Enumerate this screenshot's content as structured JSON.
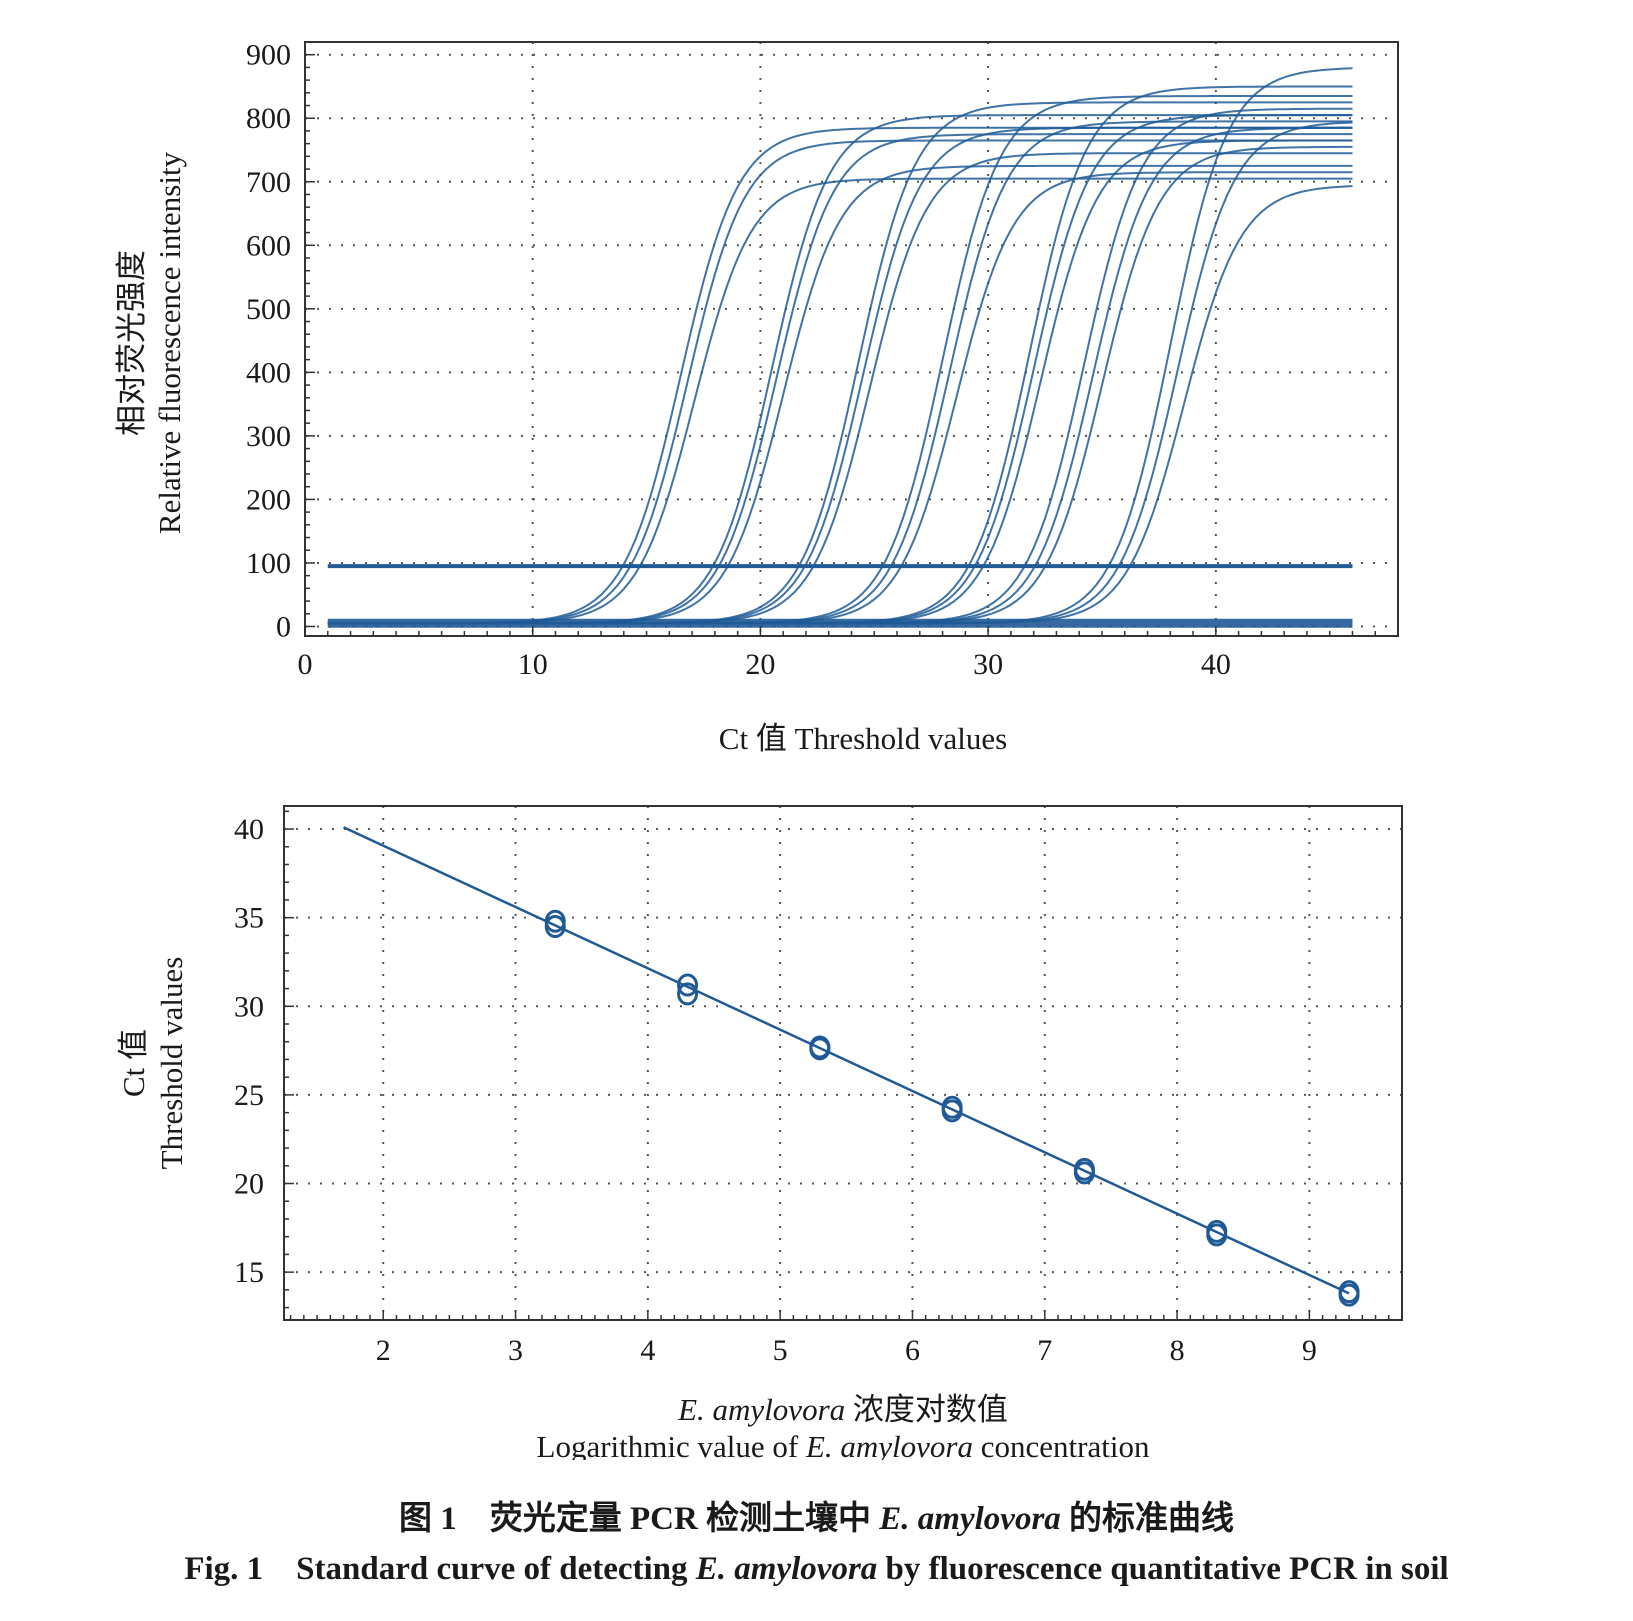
{
  "caption": {
    "zh_label": "图 1",
    "zh_text_before": "荧光定量 PCR 检测土壤中 ",
    "zh_species": "E. amylovora",
    "zh_text_after": " 的标准曲线",
    "en_label": "Fig. 1",
    "en_text_before": "Standard curve of detecting ",
    "en_species": "E. amylovora",
    "en_text_after": " by fluorescence quantitative PCR in soil"
  },
  "chart_data": [
    {
      "type": "line",
      "title": "",
      "xlabel": "Ct 值 Threshold values",
      "ylabel_zh": "相对荧光强度",
      "ylabel_en": "Relative fluorescence intensity",
      "xlim": [
        0,
        48
      ],
      "ylim": [
        -15,
        920
      ],
      "xticks": [
        0,
        10,
        20,
        30,
        40
      ],
      "yticks": [
        0,
        100,
        200,
        300,
        400,
        500,
        600,
        700,
        800,
        900
      ],
      "grid": true,
      "line_color": "#1f5a96",
      "threshold": {
        "value": 95,
        "x_start": 1,
        "x_end": 46
      },
      "series": [
        {
          "midpoint": 16.5,
          "plateau": 780
        },
        {
          "midpoint": 16.8,
          "plateau": 760
        },
        {
          "midpoint": 17.1,
          "plateau": 700
        },
        {
          "midpoint": 20.5,
          "plateau": 800
        },
        {
          "midpoint": 20.7,
          "plateau": 770
        },
        {
          "midpoint": 21.0,
          "plateau": 720
        },
        {
          "midpoint": 24.3,
          "plateau": 820
        },
        {
          "midpoint": 24.5,
          "plateau": 780
        },
        {
          "midpoint": 24.8,
          "plateau": 740
        },
        {
          "midpoint": 28.0,
          "plateau": 830
        },
        {
          "midpoint": 28.3,
          "plateau": 790
        },
        {
          "midpoint": 28.6,
          "plateau": 710
        },
        {
          "midpoint": 31.8,
          "plateau": 845
        },
        {
          "midpoint": 32.0,
          "plateau": 800
        },
        {
          "midpoint": 32.3,
          "plateau": 760
        },
        {
          "midpoint": 34.2,
          "plateau": 810
        },
        {
          "midpoint": 34.6,
          "plateau": 780
        },
        {
          "midpoint": 35.0,
          "plateau": 750
        },
        {
          "midpoint": 38.0,
          "plateau": 875
        },
        {
          "midpoint": 38.3,
          "plateau": 790
        },
        {
          "midpoint": 38.6,
          "plateau": 690
        }
      ]
    },
    {
      "type": "scatter",
      "title": "",
      "xlabel_zh_species": "E. amylovora",
      "xlabel_zh_text": " 浓度对数值",
      "xlabel_en_before": "Logarithmic value of ",
      "xlabel_en_species": "E. amylovora",
      "xlabel_en_after": " concentration",
      "ylabel_zh": "Ct 值",
      "ylabel_en": "Threshold values",
      "xlim": [
        1.25,
        9.7
      ],
      "ylim": [
        12.3,
        41.3
      ],
      "xticks": [
        2,
        3,
        4,
        5,
        6,
        7,
        8,
        9
      ],
      "yticks": [
        15,
        20,
        25,
        30,
        35,
        40
      ],
      "grid": true,
      "point_color": "#1f5a96",
      "fit_line": {
        "x": [
          1.7,
          9.3
        ],
        "y": [
          40.1,
          13.8
        ]
      },
      "points": [
        {
          "x": 3.3,
          "y": 34.8
        },
        {
          "x": 3.3,
          "y": 34.5
        },
        {
          "x": 4.3,
          "y": 31.2
        },
        {
          "x": 4.3,
          "y": 30.7
        },
        {
          "x": 5.3,
          "y": 27.7
        },
        {
          "x": 5.3,
          "y": 27.6
        },
        {
          "x": 6.3,
          "y": 24.3
        },
        {
          "x": 6.3,
          "y": 24.1
        },
        {
          "x": 7.3,
          "y": 20.8
        },
        {
          "x": 7.3,
          "y": 20.6
        },
        {
          "x": 8.3,
          "y": 17.3
        },
        {
          "x": 8.3,
          "y": 17.1
        },
        {
          "x": 9.3,
          "y": 13.9
        },
        {
          "x": 9.3,
          "y": 13.7
        }
      ]
    }
  ]
}
